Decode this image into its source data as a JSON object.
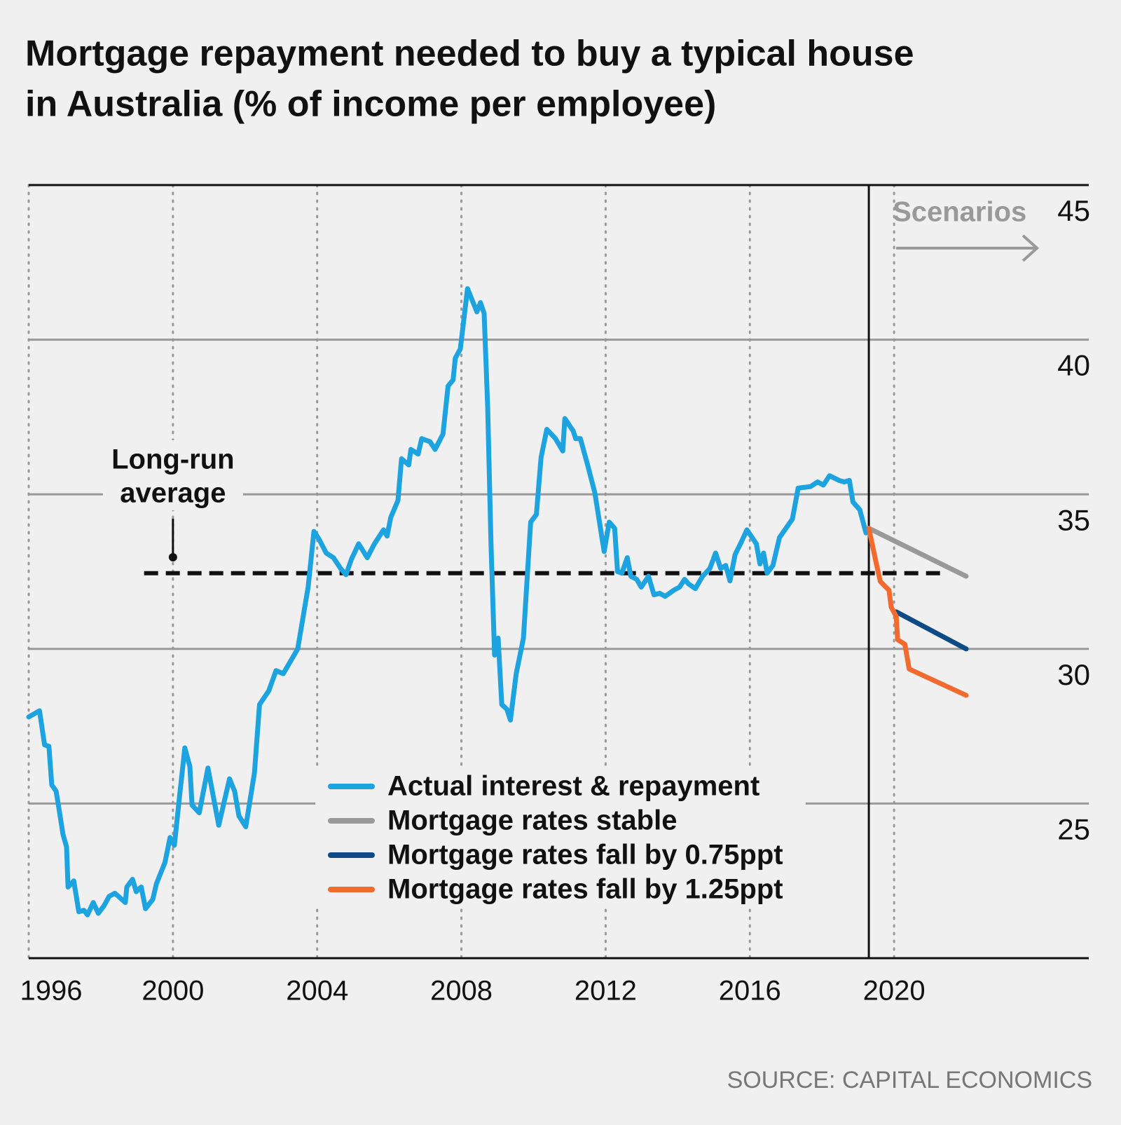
{
  "chart_data": {
    "type": "line",
    "title": [
      "Mortgage repayment needed to buy a typical house",
      "in Australia (% of income per employee)"
    ],
    "source": "SOURCE: CAPITAL ECONOMICS",
    "xlim": [
      1996,
      2025.4
    ],
    "xticks": [
      1996,
      2000,
      2004,
      2008,
      2012,
      2016,
      2020
    ],
    "ylim": [
      20,
      45
    ],
    "yticks": [
      25,
      30,
      35,
      40,
      45
    ],
    "grid": true,
    "scenario": {
      "label": "Scenarios",
      "x": 2019.3
    },
    "average": {
      "label": [
        "Long-run",
        "average"
      ],
      "value": 32.45,
      "x": [
        1999.2,
        2021.3
      ],
      "label_x": 2000
    },
    "series": [
      {
        "name": "Actual interest & repayment",
        "color": "#1ca3e0",
        "x": [
          1996.0,
          1996.3,
          1996.44,
          1996.56,
          1996.64,
          1996.76,
          1996.87,
          1996.95,
          1997.05,
          1997.09,
          1997.25,
          1997.39,
          1997.53,
          1997.63,
          1997.79,
          1997.93,
          1998.09,
          1998.23,
          1998.39,
          1998.68,
          1998.72,
          1998.88,
          1998.98,
          1999.12,
          1999.24,
          1999.44,
          1999.54,
          1999.78,
          1999.92,
          2000.04,
          2000.18,
          2000.33,
          2000.47,
          2000.53,
          2000.73,
          2000.97,
          2001.27,
          2001.57,
          2001.71,
          2001.83,
          2002.02,
          2002.26,
          2002.4,
          2002.66,
          2002.86,
          2003.06,
          2003.46,
          2003.75,
          2003.91,
          2004.05,
          2004.25,
          2004.45,
          2004.65,
          2004.8,
          2004.95,
          2005.15,
          2005.39,
          2005.59,
          2005.84,
          2005.94,
          2006.04,
          2006.24,
          2006.34,
          2006.54,
          2006.6,
          2006.8,
          2006.9,
          2007.13,
          2007.27,
          2007.49,
          2007.63,
          2007.77,
          2007.83,
          2007.97,
          2008.17,
          2008.43,
          2008.53,
          2008.63,
          2008.73,
          2008.82,
          2008.92,
          2009.02,
          2009.12,
          2009.26,
          2009.36,
          2009.52,
          2009.72,
          2009.92,
          2010.08,
          2010.21,
          2010.37,
          2010.61,
          2010.81,
          2010.87,
          2011.1,
          2011.17,
          2011.3,
          2011.5,
          2011.7,
          2011.96,
          2012.1,
          2012.25,
          2012.33,
          2012.45,
          2012.6,
          2012.7,
          2012.86,
          2012.99,
          2013.19,
          2013.34,
          2013.5,
          2013.65,
          2013.89,
          2014.05,
          2014.19,
          2014.3,
          2014.49,
          2014.69,
          2014.89,
          2015.05,
          2015.19,
          2015.33,
          2015.45,
          2015.59,
          2015.74,
          2015.92,
          2016.18,
          2016.28,
          2016.38,
          2016.48,
          2016.64,
          2016.82,
          2017.18,
          2017.34,
          2017.68,
          2017.88,
          2018.04,
          2018.21,
          2018.47,
          2018.62,
          2018.76,
          2018.86,
          2019.05,
          2019.22,
          2019.3
        ],
        "values": [
          27.8,
          28.0,
          26.9,
          26.85,
          25.6,
          25.4,
          24.6,
          24.0,
          23.6,
          22.3,
          22.5,
          21.5,
          21.55,
          21.4,
          21.8,
          21.45,
          21.7,
          22.0,
          22.1,
          21.8,
          22.3,
          22.55,
          22.15,
          22.3,
          21.6,
          21.9,
          22.4,
          23.1,
          23.9,
          23.65,
          25.2,
          26.8,
          26.2,
          24.95,
          24.7,
          26.15,
          24.3,
          25.8,
          25.4,
          24.6,
          24.25,
          26.0,
          28.2,
          28.65,
          29.3,
          29.2,
          30.0,
          32.0,
          33.8,
          33.55,
          33.1,
          32.95,
          32.6,
          32.4,
          32.9,
          33.4,
          32.95,
          33.4,
          33.85,
          33.65,
          34.25,
          34.8,
          36.15,
          35.95,
          36.45,
          36.3,
          36.8,
          36.7,
          36.45,
          36.95,
          38.5,
          38.7,
          39.4,
          39.7,
          41.65,
          40.9,
          41.2,
          40.85,
          37.8,
          33.4,
          29.8,
          30.35,
          28.2,
          28.05,
          27.7,
          29.2,
          30.35,
          34.1,
          34.35,
          36.2,
          37.1,
          36.8,
          36.4,
          37.45,
          37.05,
          36.8,
          36.8,
          35.95,
          35.05,
          33.15,
          34.1,
          33.9,
          32.5,
          32.45,
          32.95,
          32.35,
          32.25,
          32.0,
          32.35,
          31.75,
          31.8,
          31.7,
          31.9,
          32.0,
          32.25,
          32.1,
          31.95,
          32.35,
          32.6,
          33.1,
          32.6,
          32.7,
          32.2,
          33.05,
          33.4,
          33.85,
          33.4,
          32.75,
          33.1,
          32.45,
          32.7,
          33.6,
          34.2,
          35.2,
          35.25,
          35.4,
          35.3,
          35.6,
          35.45,
          35.4,
          35.45,
          34.75,
          34.5,
          33.75,
          33.9
        ]
      },
      {
        "name": "Mortgage rates stable",
        "color": "#999999",
        "x": [
          2019.3,
          2022.0
        ],
        "values": [
          33.9,
          32.35
        ]
      },
      {
        "name": "Mortgage rates fall by 0.75ppt",
        "color": "#0d4a86",
        "x": [
          2020.06,
          2022.0
        ],
        "values": [
          31.2,
          30.0
        ]
      },
      {
        "name": "Mortgage rates fall by 1.25ppt",
        "color": "#f26a2e",
        "x": [
          2019.3,
          2019.5,
          2019.62,
          2019.86,
          2019.92,
          2020.06,
          2020.1,
          2020.3,
          2020.42,
          2022.0
        ],
        "values": [
          33.9,
          32.8,
          32.18,
          31.9,
          31.35,
          31.05,
          30.3,
          30.15,
          29.35,
          28.5
        ]
      }
    ]
  }
}
